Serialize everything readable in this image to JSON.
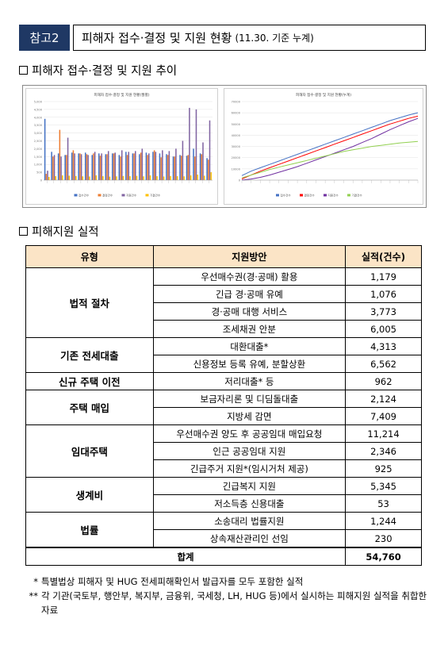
{
  "header": {
    "tag": "참고2",
    "title": "피해자 접수·결정 및 지원 현황",
    "title_note": "(11.30. 기준 누계)"
  },
  "section1": {
    "title": "피해자 접수·결정 및 지원 추이"
  },
  "section2": {
    "title": "피해지원 실적"
  },
  "chart_data": [
    {
      "type": "bar",
      "title": "피해자 접수·결정 및 지원 현황(월별)",
      "ylim": [
        0,
        5000
      ],
      "y_ticks": [
        "5,000",
        "4,500",
        "4,000",
        "3,500",
        "3,000",
        "2,500",
        "2,000",
        "1,500",
        "1,000",
        "500",
        "0"
      ],
      "legend_position": "bottom",
      "series": [
        {
          "name": "접수건수",
          "color": "#4472c4",
          "values": [
            3900,
            1800,
            1700,
            1600,
            1750,
            1700,
            1750,
            1600,
            1700,
            1650,
            1700,
            1600,
            1800,
            1700,
            1650,
            1750,
            1800,
            1700,
            1650,
            1500,
            1600,
            1550,
            2000,
            1700,
            1400
          ]
        },
        {
          "name": "결정건수",
          "color": "#ed7d31",
          "values": [
            400,
            1500,
            3200,
            1600,
            1900,
            1700,
            1650,
            1700,
            1550,
            1650,
            1700,
            1500,
            1600,
            1700,
            1750,
            1600,
            1900,
            1450,
            1600,
            1500,
            1550,
            1600,
            1500,
            1650,
            1300
          ]
        },
        {
          "name": "지원건수",
          "color": "#8064a2",
          "values": [
            600,
            1600,
            1500,
            2700,
            1700,
            1650,
            1600,
            1800,
            1700,
            1850,
            1750,
            1900,
            1800,
            1850,
            2000,
            1700,
            1800,
            1900,
            1850,
            2000,
            2500,
            4600,
            4500,
            2400,
            3800
          ]
        },
        {
          "name": "기결건수",
          "color": "#ffc000",
          "values": [
            200,
            250,
            300,
            280,
            260,
            240,
            230,
            300,
            250,
            220,
            240,
            260,
            250,
            270,
            240,
            300,
            250,
            230,
            260,
            250,
            240,
            300,
            350,
            280,
            500
          ]
        }
      ]
    },
    {
      "type": "line",
      "title": "피해자 접수·결정 및 지원 현황(누계)",
      "ylim": [
        0,
        70000
      ],
      "y_ticks": [
        "70000",
        "60000",
        "50000",
        "40000",
        "30000",
        "20000",
        "10000",
        "0"
      ],
      "legend_position": "bottom",
      "series": [
        {
          "name": "접수건수",
          "color": "#4472c4",
          "values": [
            4000,
            8000,
            11000,
            14000,
            17000,
            20000,
            23000,
            26000,
            29000,
            32000,
            35000,
            38000,
            41000,
            44000,
            47000,
            50000,
            53000,
            55500,
            58000,
            60000
          ]
        },
        {
          "name": "결정건수",
          "color": "#ff0000",
          "values": [
            1000,
            4500,
            8000,
            11000,
            14000,
            17000,
            20000,
            23000,
            26000,
            29000,
            32000,
            35000,
            38000,
            41000,
            44000,
            47000,
            50000,
            52500,
            55000,
            57000
          ]
        },
        {
          "name": "지원건수",
          "color": "#7030a0",
          "values": [
            0,
            1000,
            2500,
            4500,
            7000,
            9500,
            12000,
            15000,
            18000,
            21000,
            24000,
            27000,
            30000,
            33500,
            37000,
            41000,
            45000,
            48500,
            52000,
            55000
          ]
        },
        {
          "name": "기결건수",
          "color": "#92d050",
          "values": [
            2000,
            4500,
            7000,
            9500,
            11500,
            13500,
            15500,
            17500,
            19500,
            21500,
            23500,
            25500,
            27000,
            28500,
            30000,
            31000,
            32000,
            33000,
            33800,
            34500
          ]
        }
      ]
    }
  ],
  "table": {
    "headers": [
      "유형",
      "지원방안",
      "실적(건수)"
    ],
    "groups": [
      {
        "category": "법적 절차",
        "rows": [
          {
            "method": "우선매수권(경·공매) 활용",
            "count": "1,179"
          },
          {
            "method": "긴급 경·공매 유예",
            "count": "1,076"
          },
          {
            "method": "경·공매 대행 서비스",
            "count": "3,773"
          },
          {
            "method": "조세채권 안분",
            "count": "6,005"
          }
        ]
      },
      {
        "category": "기존 전세대출",
        "rows": [
          {
            "method": "대환대출*",
            "count": "4,313"
          },
          {
            "method": "신용정보 등록 유예, 분할상환",
            "count": "6,562"
          }
        ]
      },
      {
        "category": "신규 주택 이전",
        "rows": [
          {
            "method": "저리대출* 등",
            "count": "962"
          }
        ]
      },
      {
        "category": "주택 매입",
        "rows": [
          {
            "method": "보금자리론 및 디딤돌대출",
            "count": "2,124"
          },
          {
            "method": "지방세 감면",
            "count": "7,409"
          }
        ]
      },
      {
        "category": "임대주택",
        "rows": [
          {
            "method": "우선매수권 양도 후 공공임대 매입요청",
            "count": "11,214"
          },
          {
            "method": "인근 공공임대 지원",
            "count": "2,346"
          },
          {
            "method": "긴급주거 지원*(임시거처 제공)",
            "count": "925"
          }
        ]
      },
      {
        "category": "생계비",
        "rows": [
          {
            "method": "긴급복지 지원",
            "count": "5,345"
          },
          {
            "method": "저소득층 신용대출",
            "count": "53"
          }
        ]
      },
      {
        "category": "법률",
        "rows": [
          {
            "method": "소송대리 법률지원",
            "count": "1,244"
          },
          {
            "method": "상속재산관리인 선임",
            "count": "230"
          }
        ]
      }
    ],
    "total": {
      "label": "합계",
      "count": "54,760"
    }
  },
  "notes": [
    {
      "mark": "*",
      "text": "특별법상 피해자 및 HUG 전세피해확인서 발급자를 모두 포함한 실적"
    },
    {
      "mark": "**",
      "text": "각 기관(국토부, 행안부, 복지부, 금융위, 국세청, LH, HUG 등)에서 실시하는 피해지원 실적을 취합한 자료"
    }
  ]
}
